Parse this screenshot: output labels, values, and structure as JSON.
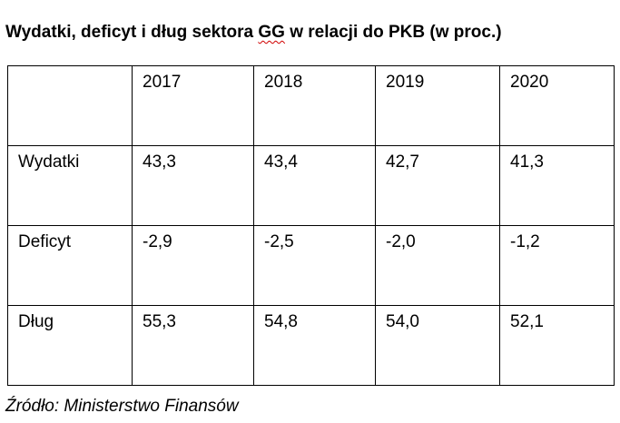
{
  "title": {
    "before": "Wydatki, deficyt i dług sektora ",
    "flagged": "GG",
    "after": " w relacji do PKB (w proc.)"
  },
  "table": {
    "header": [
      "",
      "2017",
      "2018",
      "2019",
      "2020"
    ],
    "rows": [
      {
        "label": "Wydatki",
        "values": [
          "43,3",
          "43,4",
          "42,7",
          "41,3"
        ]
      },
      {
        "label": "Deficyt",
        "values": [
          "-2,9",
          "-2,5",
          "-2,0",
          "-1,2"
        ]
      },
      {
        "label": "Dług",
        "values": [
          "55,3",
          "54,8",
          "54,0",
          "52,1"
        ]
      }
    ]
  },
  "source": "Źródło: Ministerstwo Finansów",
  "colors": {
    "spellcheck_underline": "#d00000",
    "text": "#000000",
    "border": "#000000"
  }
}
